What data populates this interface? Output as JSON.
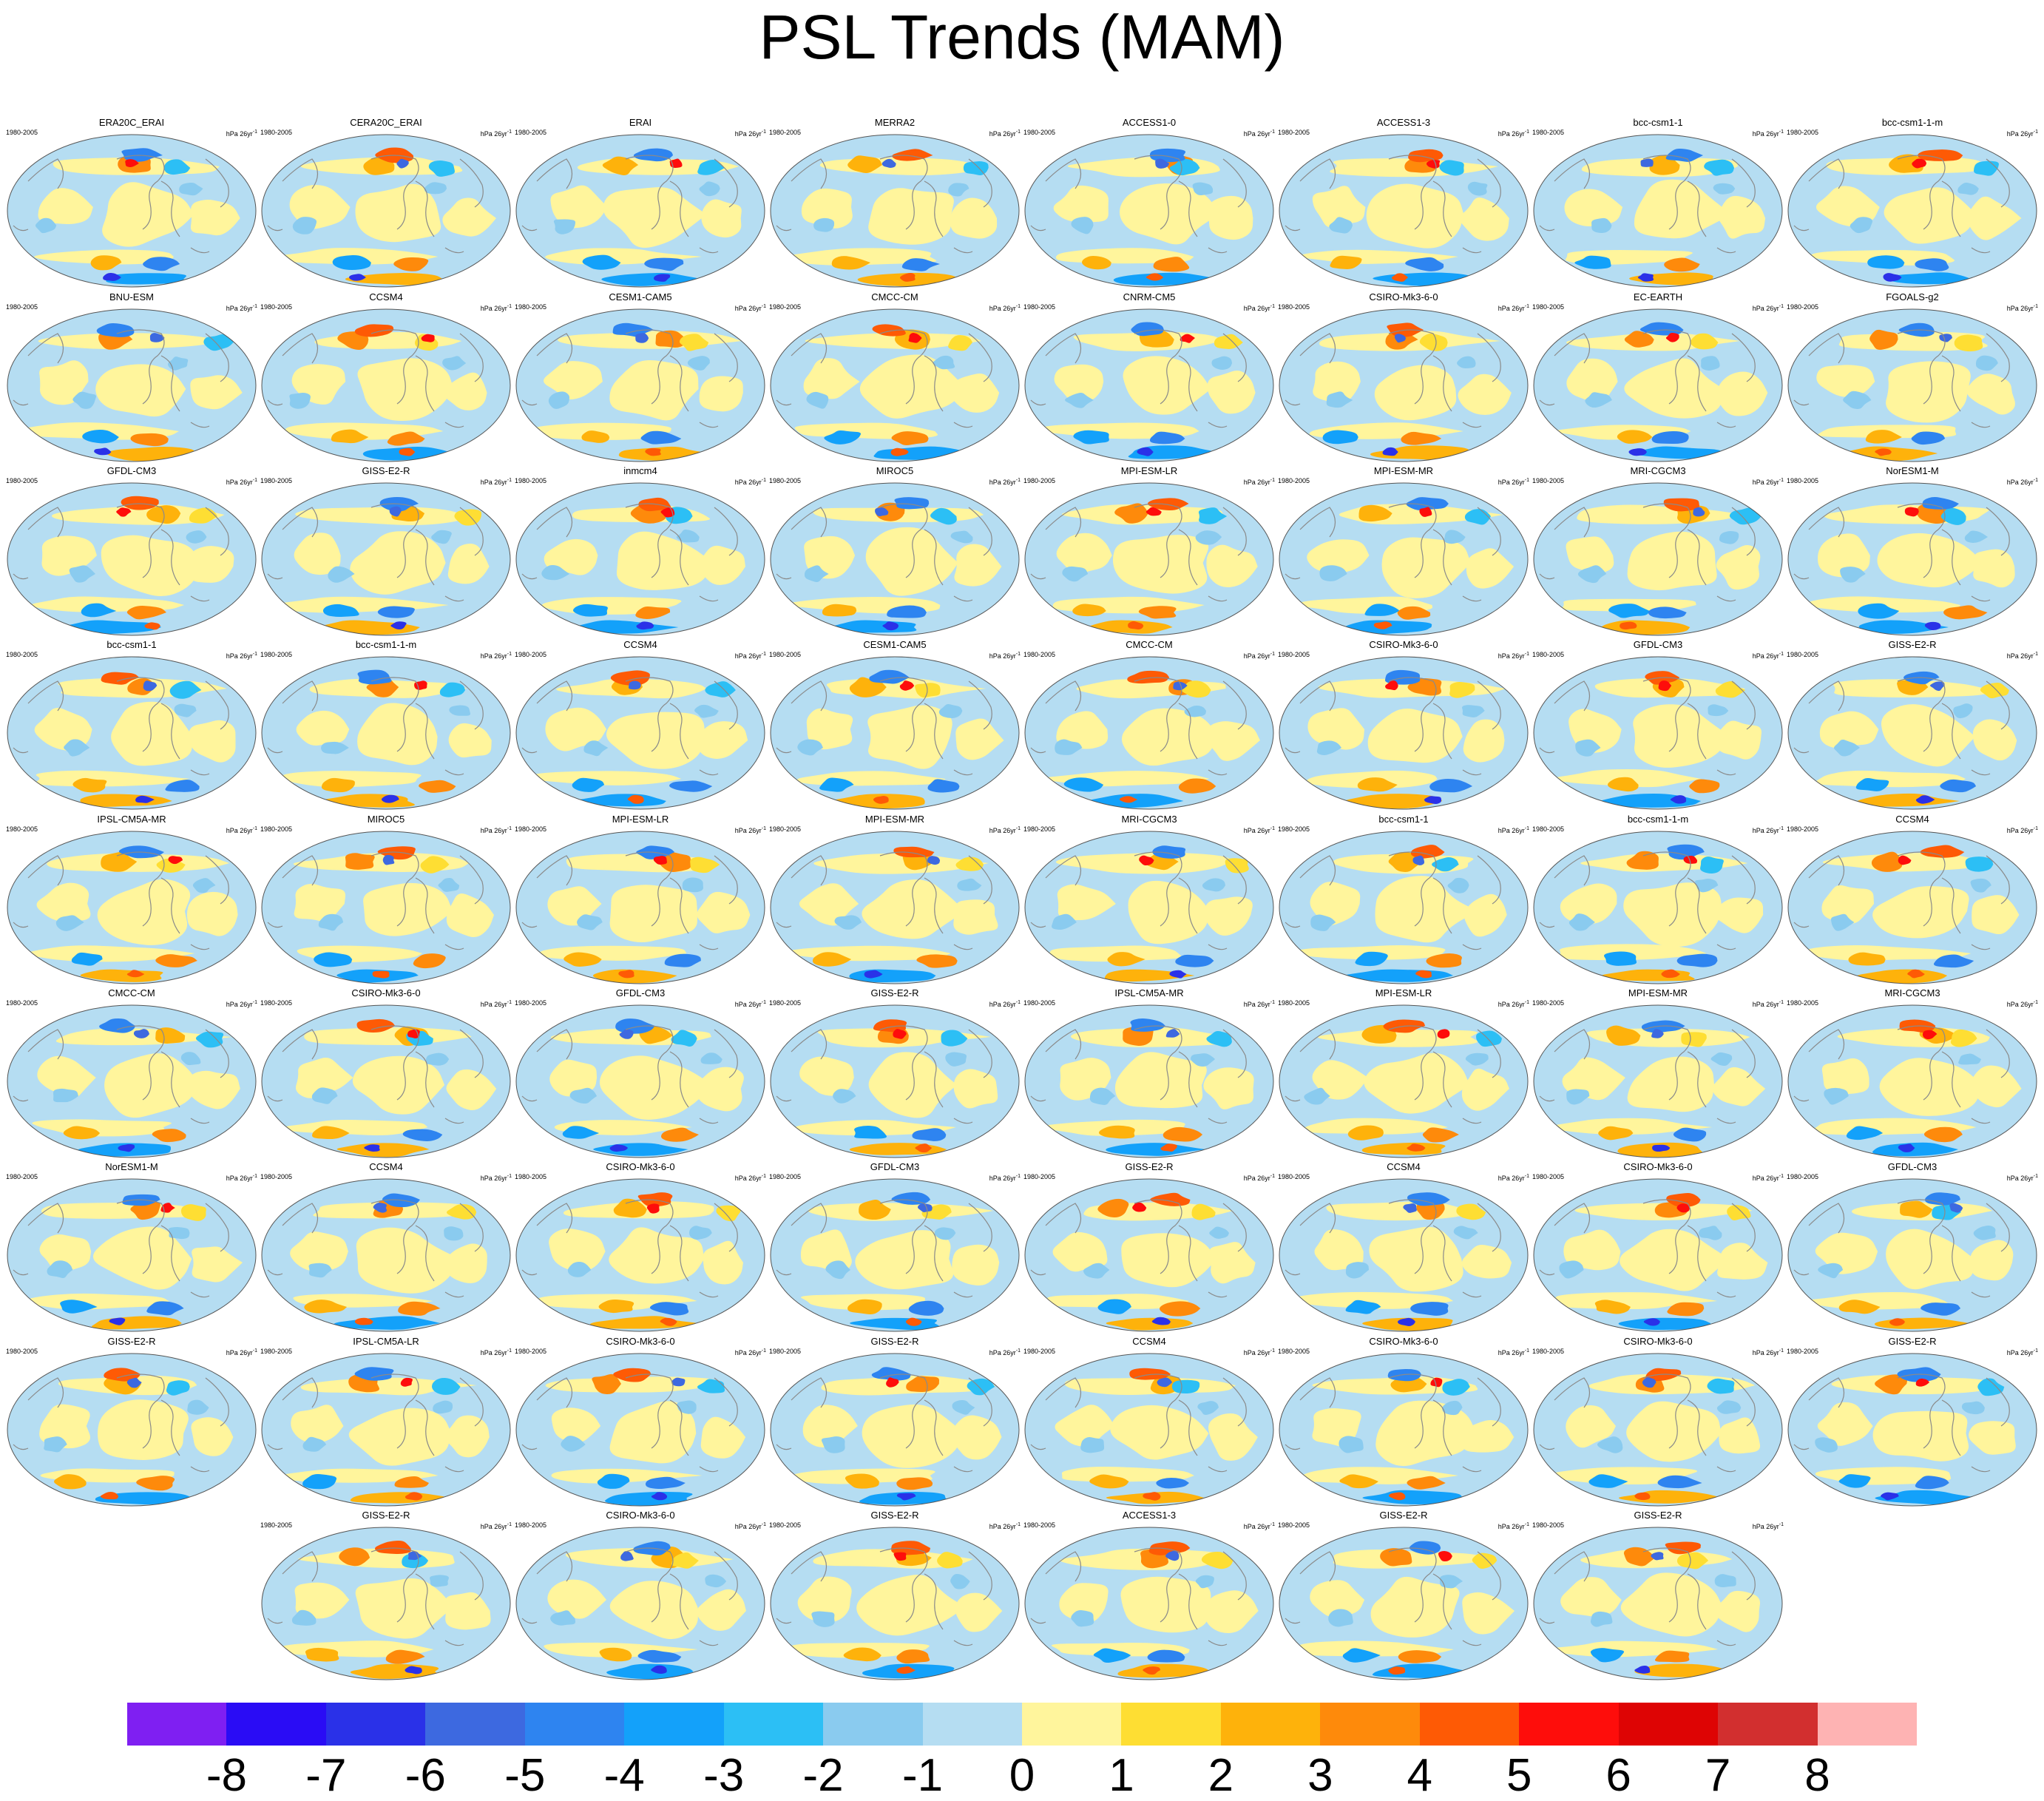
{
  "chart_data": {
    "type": "heatmap",
    "title": "PSL Trends (MAM)",
    "description_units": "hPa 26yr⁻¹",
    "period": "1980-2005",
    "units_display": {
      "base": "hPa 26yr",
      "exponent": "-1"
    },
    "colorbar": {
      "levels": [
        -8,
        -7,
        -6,
        -5,
        -4,
        -3,
        -2,
        -1,
        0,
        1,
        2,
        3,
        4,
        5,
        6,
        7,
        8
      ],
      "tick_labels": [
        "-8",
        "-7",
        "-6",
        "-5",
        "-4",
        "-3",
        "-2",
        "-1",
        "0",
        "1",
        "2",
        "3",
        "4",
        "5",
        "6",
        "7",
        "8"
      ],
      "colors": [
        "#7f1ff2",
        "#2a0cf5",
        "#2a31e8",
        "#3d69e0",
        "#2e84f0",
        "#13a1fa",
        "#2cbff5",
        "#8acbef",
        "#b5ddf2",
        "#fff59c",
        "#fede33",
        "#feb20b",
        "#fe8a0b",
        "#fe5a05",
        "#fe0d0b",
        "#de0404",
        "#d22f2f",
        "#feb3b3"
      ]
    },
    "panels": [
      "ERA20C_ERAI",
      "CERA20C_ERAI",
      "ERAI",
      "MERRA2",
      "ACCESS1-0",
      "ACCESS1-3",
      "bcc-csm1-1",
      "bcc-csm1-1-m",
      "BNU-ESM",
      "CCSM4",
      "CESM1-CAM5",
      "CMCC-CM",
      "CNRM-CM5",
      "CSIRO-Mk3-6-0",
      "EC-EARTH",
      "FGOALS-g2",
      "GFDL-CM3",
      "GISS-E2-R",
      "inmcm4",
      "MIROC5",
      "MPI-ESM-LR",
      "MPI-ESM-MR",
      "MRI-CGCM3",
      "NorESM1-M",
      "bcc-csm1-1",
      "bcc-csm1-1-m",
      "CCSM4",
      "CESM1-CAM5",
      "CMCC-CM",
      "CSIRO-Mk3-6-0",
      "GFDL-CM3",
      "GISS-E2-R",
      "IPSL-CM5A-MR",
      "MIROC5",
      "MPI-ESM-LR",
      "MPI-ESM-MR",
      "MRI-CGCM3",
      "bcc-csm1-1",
      "bcc-csm1-1-m",
      "CCSM4",
      "CMCC-CM",
      "CSIRO-Mk3-6-0",
      "GFDL-CM3",
      "GISS-E2-R",
      "IPSL-CM5A-MR",
      "MPI-ESM-LR",
      "MPI-ESM-MR",
      "MRI-CGCM3",
      "NorESM1-M",
      "CCSM4",
      "CSIRO-Mk3-6-0",
      "GFDL-CM3",
      "GISS-E2-R",
      "CCSM4",
      "CSIRO-Mk3-6-0",
      "GFDL-CM3",
      "GISS-E2-R",
      "IPSL-CM5A-LR",
      "CSIRO-Mk3-6-0",
      "GISS-E2-R",
      "CCSM4",
      "CSIRO-Mk3-6-0",
      "CSIRO-Mk3-6-0",
      "GISS-E2-R",
      "GISS-E2-R",
      "CSIRO-Mk3-6-0",
      "GISS-E2-R",
      "ACCESS1-3",
      "GISS-E2-R",
      "GISS-E2-R"
    ],
    "layout_rows": [
      8,
      8,
      8,
      8,
      8,
      8,
      8,
      8,
      6
    ]
  }
}
